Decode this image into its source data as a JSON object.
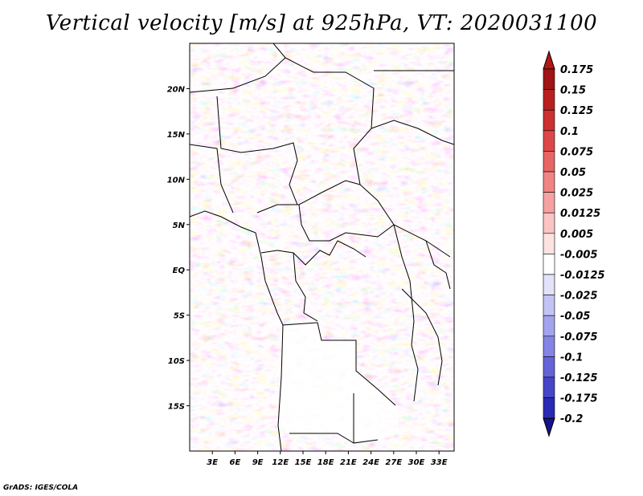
{
  "title": "Vertical velocity [m/s] at 925hPa, VT: 2020031100",
  "credit": "GrADS: IGES/COLA",
  "map": {
    "lat_range": [
      -20,
      25
    ],
    "lon_range": [
      0,
      35
    ],
    "lat_ticks": [
      {
        "value": 20,
        "label": "20N"
      },
      {
        "value": 15,
        "label": "15N"
      },
      {
        "value": 10,
        "label": "10N"
      },
      {
        "value": 5,
        "label": "5N"
      },
      {
        "value": 0,
        "label": "EQ"
      },
      {
        "value": -5,
        "label": "5S"
      },
      {
        "value": -10,
        "label": "10S"
      },
      {
        "value": -15,
        "label": "15S"
      }
    ],
    "lon_ticks": [
      {
        "value": 3,
        "label": "3E"
      },
      {
        "value": 6,
        "label": "6E"
      },
      {
        "value": 9,
        "label": "9E"
      },
      {
        "value": 12,
        "label": "12E"
      },
      {
        "value": 15,
        "label": "15E"
      },
      {
        "value": 18,
        "label": "18E"
      },
      {
        "value": 21,
        "label": "21E"
      },
      {
        "value": 24,
        "label": "24E"
      },
      {
        "value": 27,
        "label": "27E"
      },
      {
        "value": 30,
        "label": "30E"
      },
      {
        "value": 33,
        "label": "33E"
      }
    ]
  },
  "colorbar": {
    "levels": [
      {
        "label": "0.175",
        "color": "#a01515"
      },
      {
        "label": "0.15",
        "color": "#b82020"
      },
      {
        "label": "0.125",
        "color": "#cc3030"
      },
      {
        "label": "0.1",
        "color": "#dc4848"
      },
      {
        "label": "0.075",
        "color": "#e66565"
      },
      {
        "label": "0.05",
        "color": "#f08484"
      },
      {
        "label": "0.025",
        "color": "#f6a2a2"
      },
      {
        "label": "0.0125",
        "color": "#fac4c4"
      },
      {
        "label": "0.005",
        "color": "#fde2e2"
      },
      {
        "label": "-0.005",
        "color": "#ffffff"
      },
      {
        "label": "-0.0125",
        "color": "#e2e2fa"
      },
      {
        "label": "-0.025",
        "color": "#c4c4f4"
      },
      {
        "label": "-0.05",
        "color": "#a4a4ee"
      },
      {
        "label": "-0.075",
        "color": "#8484e4"
      },
      {
        "label": "-0.1",
        "color": "#6464d8"
      },
      {
        "label": "-0.125",
        "color": "#4646c8"
      },
      {
        "label": "-0.175",
        "color": "#2a2ab4"
      },
      {
        "label": "-0.2",
        "color": "#1a1a9a"
      }
    ],
    "top_color": "#b21616",
    "bottom_color": "#14148c"
  }
}
